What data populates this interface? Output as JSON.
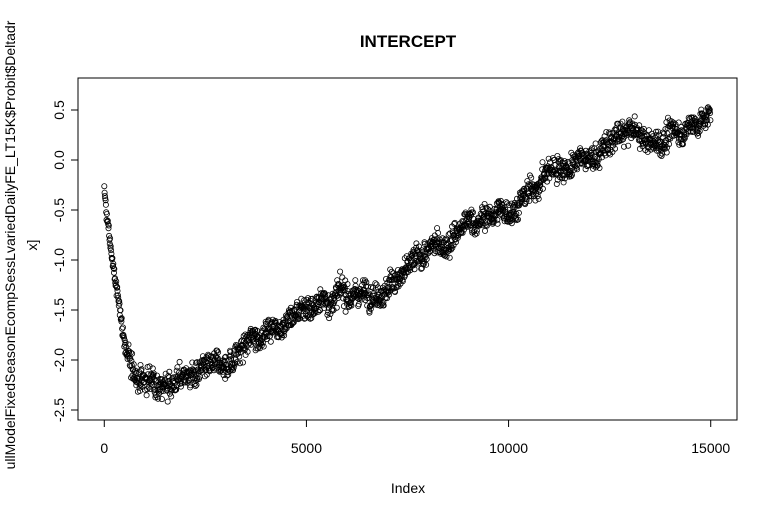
{
  "chart_data": {
    "type": "scatter",
    "title": "INTERCEPT",
    "xlabel": "Index",
    "ylabel_line1": "ullModelFixedSeasonEcompSessLvariedDailyFE_LT15K$Probit$Deltadr",
    "ylabel_line2": "x]",
    "xlim": [
      -650,
      15650
    ],
    "ylim": [
      -2.6,
      0.82
    ],
    "xticks": [
      0,
      5000,
      10000,
      15000
    ],
    "xtick_labels": [
      "0",
      "5000",
      "10000",
      "15000"
    ],
    "yticks": [
      -2.5,
      -2.0,
      -1.5,
      -1.0,
      -0.5,
      0.0,
      0.5
    ],
    "ytick_labels": [
      "-2.5",
      "-2.0",
      "-1.5",
      "-1.0",
      "-0.5",
      "0.0",
      "0.5"
    ],
    "grid": false,
    "n_points": 15000,
    "marker": "open-circle",
    "color": "#000000",
    "trend": {
      "x": [
        0,
        50,
        150,
        300,
        500,
        700,
        1000,
        1500,
        2000,
        2500,
        3000,
        3500,
        4000,
        5000,
        6000,
        7000,
        8000,
        9000,
        10000,
        10500,
        11000,
        12000,
        13000,
        13500,
        14000,
        14500,
        15000
      ],
      "y": [
        -0.3,
        -0.55,
        -0.85,
        -1.3,
        -1.8,
        -2.15,
        -2.2,
        -2.2,
        -2.15,
        -2.15,
        -2.05,
        -1.85,
        -1.7,
        -1.45,
        -1.35,
        -1.25,
        -0.95,
        -0.65,
        -0.5,
        -0.35,
        -0.1,
        0.0,
        0.3,
        0.15,
        0.25,
        0.35,
        0.45
      ]
    },
    "spread": 0.12
  }
}
